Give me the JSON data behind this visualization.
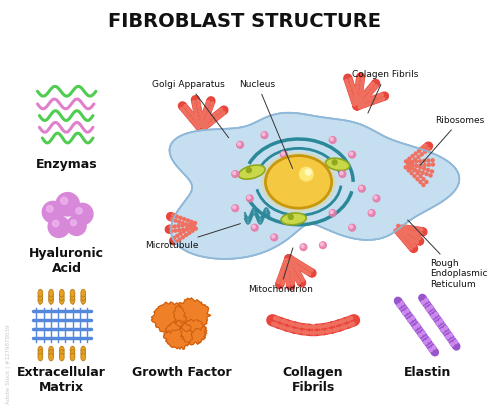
{
  "title": "FIBROBLAST STRUCTURE",
  "title_fontsize": 14,
  "title_fontweight": "bold",
  "bg_color": "#ffffff",
  "cell_color": "#c5dff0",
  "cell_outline": "#90b8d8",
  "nucleus_color": "#f5c842",
  "nucleus_outline": "#c8980a",
  "red_organelle_color": "#e8453c",
  "red_organelle_dark": "#c03020",
  "red_organelle_light": "#f07060",
  "pink_dot_color": "#e878a8",
  "teal_ring_color": "#2a8899",
  "golgi_color": "#e8c838",
  "mito_color": "#c8d848",
  "mito_dark": "#90a820",
  "label_fontsize": 6.5,
  "label_color": "#111111",
  "enzyme_green": "#50cc50",
  "enzyme_pink": "#e080cc",
  "hyaluronic_color": "#d888d8",
  "hyaluronic_light": "#f0b8f0",
  "extracellular_blue": "#5588dd",
  "extracellular_gold": "#e8a020",
  "growth_factor_color": "#f08028",
  "growth_factor_dark": "#d06010",
  "collagen_color": "#e84848",
  "collagen_light": "#f08878",
  "elastin_color": "#9955cc",
  "elastin_light": "#cc88ee",
  "labels": {
    "golgi": "Golgi Apparatus",
    "nucleus": "Nucleus",
    "collagen_fibrils_top": "Colagen Fibrils",
    "ribosomes": "Ribosomes",
    "microtubule": "Microtubule",
    "mitochondrion": "Mitochondrion",
    "rough_er": "Rough\nEndoplasmic\nReticulum",
    "enzymas": "Enzymas",
    "hyaluronic": "Hyaluronic\nAcid",
    "extracellular": "Extracellular\nMatrix",
    "growth_factor": "Growth Factor",
    "collagen_fibrils_bot": "Collagen\nFibrils",
    "elastin": "Elastin"
  }
}
